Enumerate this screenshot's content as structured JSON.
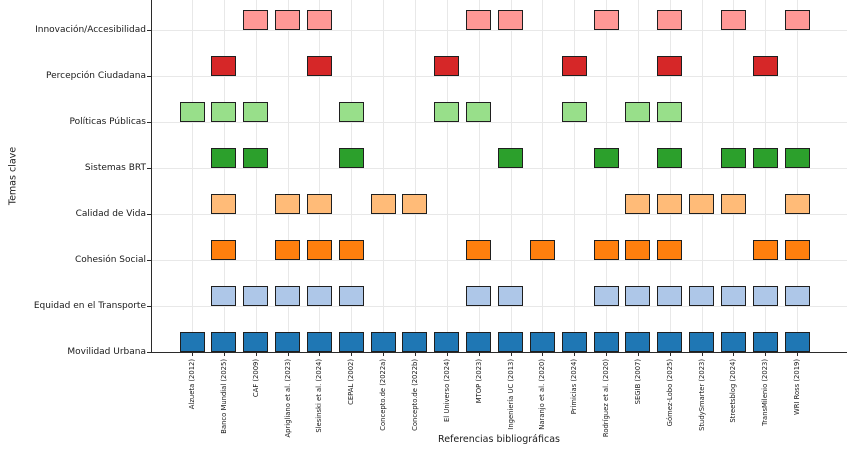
{
  "chart_data": {
    "type": "heatmap",
    "title": "",
    "xlabel": "Referencias bibliográficas",
    "ylabel": "Temas clave",
    "grid": true,
    "marker": "square",
    "edge_color": "#1f1f1f",
    "background": "#ffffff",
    "x_categories": [
      "Alzueta (2012)",
      "Banco Mundial (2025)",
      "CAF (2009)",
      "Aprigliano et al. (2023)",
      "Slesinski et al. (2024)",
      "CEPAL (2002)",
      "Concepto.de (2022a)",
      "Concepto.de (2022b)",
      "El Universo (2024)",
      "MTOP (2023)",
      "Ingeniería UC (2013)",
      "Naranjo et al. (2020)",
      "Primicias (2024)",
      "Rodríguez et al. (2020)",
      "SEGIB (2007)",
      "Gómez-Lobo (2025)",
      "StudySmarter (2023)",
      "Streetsblog (2024)",
      "TransMilenio (2023)",
      "WRI Ross (2019)"
    ],
    "y_categories_top_to_bottom": [
      "Innovación/Accesibilidad",
      "Percepción Ciudadana",
      "Políticas Públicas",
      "Sistemas BRT",
      "Calidad de Vida",
      "Cohesión Social",
      "Equidad en el Transporte",
      "Movilidad Urbana"
    ],
    "series": [
      {
        "theme": "Innovación/Accesibilidad",
        "color": "#ff9896",
        "present_at_indices": [
          2,
          3,
          4,
          9,
          10,
          13,
          15,
          17,
          19
        ]
      },
      {
        "theme": "Percepción Ciudadana",
        "color": "#d62728",
        "present_at_indices": [
          1,
          4,
          8,
          12,
          15,
          18
        ]
      },
      {
        "theme": "Políticas Públicas",
        "color": "#98df8a",
        "present_at_indices": [
          0,
          1,
          2,
          5,
          8,
          9,
          12,
          14,
          15
        ]
      },
      {
        "theme": "Sistemas BRT",
        "color": "#2ca02c",
        "present_at_indices": [
          1,
          2,
          5,
          10,
          13,
          15,
          17,
          18,
          19
        ]
      },
      {
        "theme": "Calidad de Vida",
        "color": "#ffbb78",
        "present_at_indices": [
          1,
          3,
          4,
          6,
          7,
          14,
          15,
          16,
          17,
          19
        ]
      },
      {
        "theme": "Cohesión Social",
        "color": "#ff7f0e",
        "present_at_indices": [
          1,
          3,
          4,
          5,
          9,
          11,
          13,
          14,
          15,
          18,
          19
        ]
      },
      {
        "theme": "Equidad en el Transporte",
        "color": "#aec7e8",
        "present_at_indices": [
          1,
          2,
          3,
          4,
          5,
          9,
          10,
          13,
          14,
          15,
          16,
          17,
          18,
          19
        ]
      },
      {
        "theme": "Movilidad Urbana",
        "color": "#1f77b4",
        "present_at_indices": [
          0,
          1,
          2,
          3,
          4,
          5,
          6,
          7,
          8,
          9,
          10,
          11,
          12,
          13,
          14,
          15,
          16,
          17,
          18,
          19
        ]
      }
    ]
  }
}
